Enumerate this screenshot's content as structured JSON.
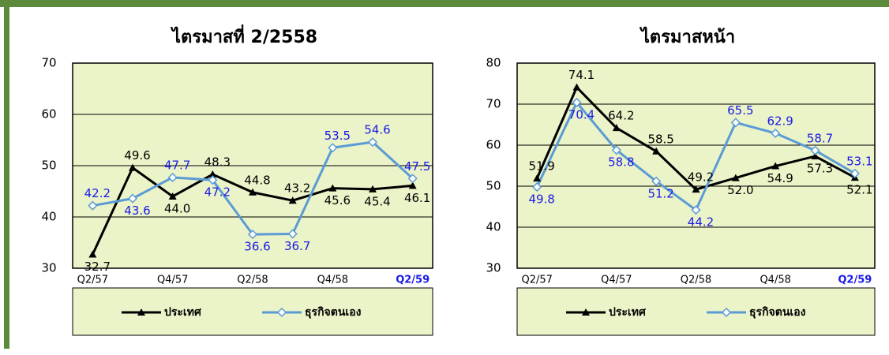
{
  "chart_data": [
    {
      "type": "line",
      "title": "ไตรมาสที่ 2/2558",
      "categories": [
        "Q2/57",
        null,
        "Q4/57",
        null,
        "Q2/58",
        null,
        "Q4/58",
        null,
        "Q2/59"
      ],
      "ylim": [
        30,
        70
      ],
      "yticks": [
        30,
        40,
        50,
        60,
        70
      ],
      "grid": true,
      "series": [
        {
          "name": "ประเทศ",
          "color": "#000000",
          "marker": "triangle",
          "label_color": "#000000",
          "values": [
            32.7,
            49.6,
            44.0,
            48.3,
            44.8,
            43.2,
            45.6,
            45.4,
            46.1
          ],
          "value_labels": [
            "32.7",
            "49.6",
            "44.0",
            "48.3",
            "44.8",
            "43.2",
            "45.6",
            "45.4",
            "46.1"
          ]
        },
        {
          "name": "ธุรกิจตนเอง",
          "color": "#5b9bd5",
          "marker": "diamond",
          "label_color": "#1a1ae6",
          "values": [
            42.2,
            43.6,
            47.7,
            47.2,
            36.6,
            36.7,
            53.5,
            54.6,
            47.5
          ],
          "value_labels": [
            "42.2",
            "43.6",
            "47.7",
            "47.2",
            "36.6",
            "36.7",
            "53.5",
            "54.6",
            "47.5"
          ]
        }
      ]
    },
    {
      "type": "line",
      "title": "ไตรมาสหน้า",
      "categories": [
        "Q2/57",
        null,
        "Q4/57",
        null,
        "Q2/58",
        null,
        "Q4/58",
        null,
        "Q2/59"
      ],
      "ylim": [
        30,
        80
      ],
      "yticks": [
        30,
        40,
        50,
        60,
        70,
        80
      ],
      "grid": true,
      "series": [
        {
          "name": "ประเทศ",
          "color": "#000000",
          "marker": "triangle",
          "label_color": "#000000",
          "values": [
            51.9,
            74.1,
            64.2,
            58.5,
            49.2,
            52.0,
            54.9,
            57.3,
            52.1
          ],
          "value_labels": [
            "51.9",
            "74.1",
            "64.2",
            "58.5",
            "49.2",
            "52.0",
            "54.9",
            "57.3",
            "52.1"
          ]
        },
        {
          "name": "ธุรกิจตนเอง",
          "color": "#5b9bd5",
          "marker": "diamond",
          "label_color": "#1a1ae6",
          "values": [
            49.8,
            70.4,
            58.8,
            51.2,
            44.2,
            65.5,
            62.9,
            58.7,
            53.1
          ],
          "value_labels": [
            "49.8",
            "70.4",
            "58.8",
            "51.2",
            "44.2",
            "65.5",
            "62.9",
            "58.7",
            "53.1"
          ]
        }
      ]
    }
  ]
}
